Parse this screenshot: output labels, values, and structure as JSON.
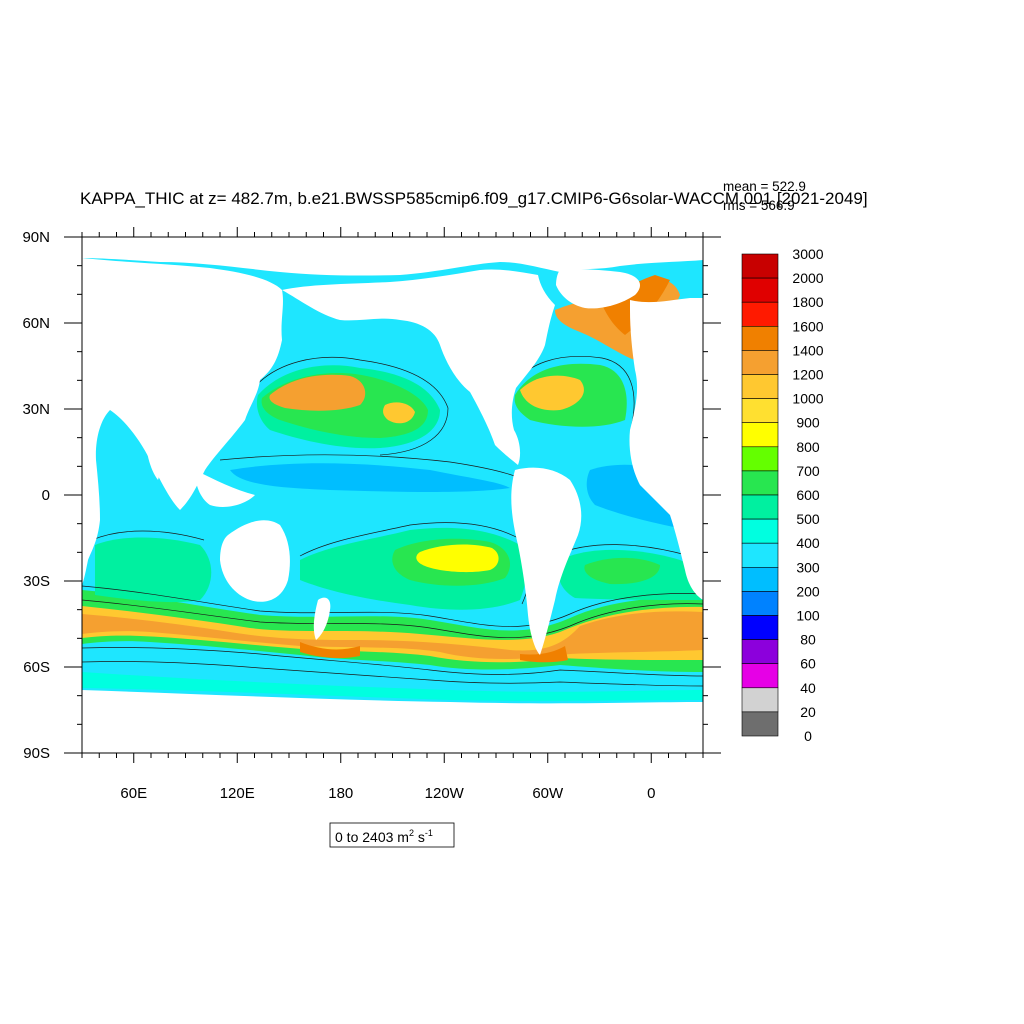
{
  "title": "KAPPA_THIC at z= 482.7m, b.e21.BWSSP585cmip6.f09_g17.CMIP6-G6solar-WACCM.001 [2021-2049]",
  "stats": {
    "mean": "mean = 522.9",
    "rms": "rms = 566.9"
  },
  "range_label": {
    "prefix": "0 to 2403 m",
    "sup1": "2",
    "mid": " s",
    "sup2": "-1"
  },
  "chart_data": {
    "type": "heatmap",
    "variable": "KAPPA_THIC",
    "level": "z= 482.7m",
    "period": "2021-2049",
    "mean": 522.9,
    "rms": 566.9,
    "range": [
      0,
      2403
    ],
    "units": "m2 s-1",
    "lon_range": [
      30,
      390
    ],
    "lat_range": [
      -90,
      90
    ],
    "x_ticks": [
      {
        "lon": 60,
        "label": "60E"
      },
      {
        "lon": 120,
        "label": "120E"
      },
      {
        "lon": 180,
        "label": "180"
      },
      {
        "lon": 240,
        "label": "120W"
      },
      {
        "lon": 300,
        "label": "60W"
      },
      {
        "lon": 360,
        "label": "0"
      }
    ],
    "y_ticks": [
      {
        "lat": 90,
        "label": "90N"
      },
      {
        "lat": 60,
        "label": "60N"
      },
      {
        "lat": 30,
        "label": "30N"
      },
      {
        "lat": 0,
        "label": "0"
      },
      {
        "lat": -30,
        "label": "30S"
      },
      {
        "lat": -60,
        "label": "60S"
      },
      {
        "lat": -90,
        "label": "90S"
      }
    ],
    "colorbar": {
      "levels": [
        "3000",
        "2000",
        "1800",
        "1600",
        "1400",
        "1200",
        "1000",
        "900",
        "800",
        "700",
        "600",
        "500",
        "400",
        "300",
        "200",
        "100",
        "80",
        "60",
        "40",
        "20",
        "0"
      ],
      "colors": [
        "#c80000",
        "#e00000",
        "#ff1a00",
        "#f08000",
        "#f5a030",
        "#ffc830",
        "#ffe030",
        "#ffff00",
        "#64ff00",
        "#28e650",
        "#00f0a0",
        "#00ffe0",
        "#1ee6ff",
        "#00beff",
        "#0082ff",
        "#0000ff",
        "#8c00dc",
        "#e600e6",
        "#d2d2d2",
        "#6e6e6e"
      ]
    }
  }
}
